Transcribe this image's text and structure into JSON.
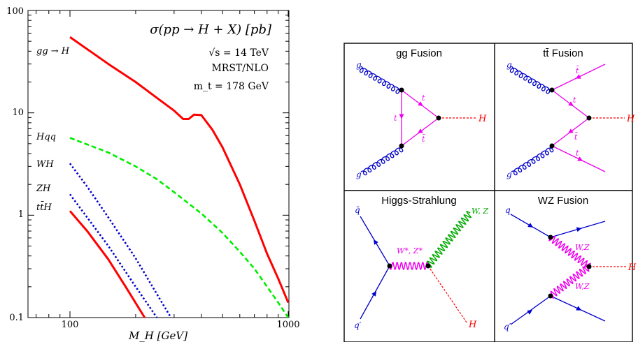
{
  "chart_data": {
    "type": "line",
    "title": "σ(pp → H + X) [pb]",
    "annotations": [
      "√s = 14 TeV",
      "MRST/NLO",
      "m_t = 178 GeV"
    ],
    "xlabel": "M_H [GeV]",
    "ylabel": "",
    "xscale": "log",
    "yscale": "log",
    "xlim": [
      60,
      1000
    ],
    "ylim": [
      0.1,
      100
    ],
    "x_ticks": [
      "100",
      "1000"
    ],
    "y_ticks": [
      "0.1",
      "1",
      "10",
      "100"
    ],
    "grid": false,
    "series": [
      {
        "name": "gg → H",
        "color": "#ff0000",
        "style": "solid",
        "x": [
          100,
          150,
          200,
          250,
          300,
          330,
          350,
          370,
          400,
          450,
          500,
          600,
          700,
          800,
          900,
          1000
        ],
        "y": [
          55,
          30,
          20,
          14,
          10.5,
          8.7,
          8.7,
          9.6,
          9.5,
          6.8,
          4.6,
          2.0,
          0.88,
          0.42,
          0.24,
          0.14
        ]
      },
      {
        "name": "Hqq",
        "color": "#00ee00",
        "style": "dashed",
        "x": [
          100,
          150,
          200,
          250,
          300,
          400,
          500,
          600,
          700,
          800,
          900,
          1000
        ],
        "y": [
          5.7,
          4.1,
          3.0,
          2.25,
          1.68,
          1.04,
          0.67,
          0.44,
          0.3,
          0.2,
          0.14,
          0.1
        ]
      },
      {
        "name": "WH",
        "color": "#0000cc",
        "style": "dotted",
        "x": [
          100,
          120,
          150,
          200,
          250,
          290
        ],
        "y": [
          3.2,
          1.9,
          0.95,
          0.38,
          0.17,
          0.1
        ]
      },
      {
        "name": "ZH",
        "color": "#0000cc",
        "style": "dotted",
        "x": [
          100,
          120,
          150,
          200,
          250
        ],
        "y": [
          1.6,
          0.95,
          0.5,
          0.2,
          0.1
        ]
      },
      {
        "name": "tt̄H",
        "color": "#ff0000",
        "style": "solid",
        "x": [
          100,
          120,
          150,
          180,
          220
        ],
        "y": [
          1.1,
          0.7,
          0.37,
          0.2,
          0.1
        ]
      }
    ]
  },
  "diagrams": {
    "gg_fusion": {
      "title": "gg Fusion",
      "labels": {
        "g1": "g",
        "g2": "g",
        "t1": "t",
        "t2": "t",
        "t3": "t̄",
        "h": "H"
      }
    },
    "tt_fusion": {
      "title": "tt̄ Fusion",
      "labels": {
        "g1": "g",
        "g2": "g",
        "t1": "t̄",
        "t2": "t",
        "t3": "t̄",
        "t4": "t",
        "h": "H"
      }
    },
    "higgs_strahlung": {
      "title": "Higgs-Strahlung",
      "labels": {
        "qbar": "q̄",
        "q": "q′",
        "v": "W*, Z*",
        "w": "W, Z",
        "h": "H"
      }
    },
    "wz_fusion": {
      "title": "WZ Fusion",
      "labels": {
        "q1": "q",
        "q2": "q′",
        "w1": "W,Z",
        "w2": "W,Z",
        "h": "H"
      }
    }
  }
}
